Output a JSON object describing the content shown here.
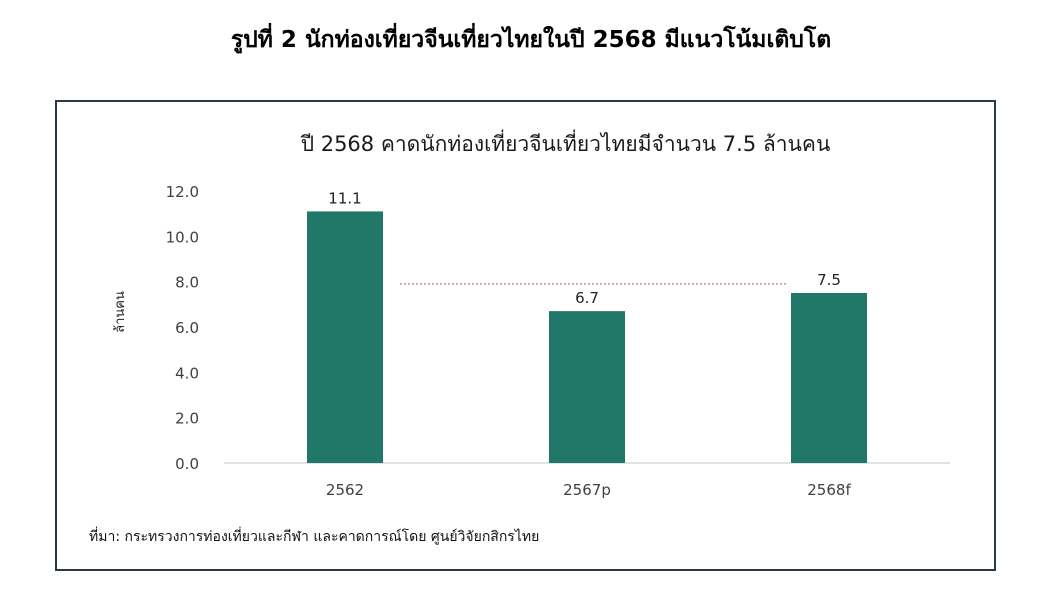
{
  "figure_caption": "รูปที่ 2 นักท่องเที่ยวจีนเที่ยวไทยในปี 2568 มีแนวโน้มเติบโต",
  "source_note": "ที่มา: กระทรวงการท่องเที่ยวและกีฬา และคาดการณ์โดย ศูนย์วิจัยกสิกรไทย",
  "colors": {
    "bar": "#217868",
    "reference_line": "#c0504d",
    "axis": "#d9d9d9",
    "frame": "#2a3a4a"
  },
  "chart_data": {
    "type": "bar",
    "title": "ปี 2568 คาดนักท่องเที่ยวจีนเที่ยวไทยมีจำนวน 7.5 ล้านคน",
    "xlabel": "",
    "ylabel": "ล้านคน",
    "categories": [
      "2562",
      "2567p",
      "2568f"
    ],
    "values": [
      11.1,
      6.7,
      7.5
    ],
    "value_labels": [
      "11.1",
      "6.7",
      "7.5"
    ],
    "ylim": [
      0,
      12
    ],
    "yticks": [
      "0.0",
      "2.0",
      "4.0",
      "6.0",
      "8.0",
      "10.0",
      "12.0"
    ],
    "reference_line": {
      "y": 7.9,
      "style": "dotted"
    },
    "grid": false,
    "legend": "none"
  }
}
